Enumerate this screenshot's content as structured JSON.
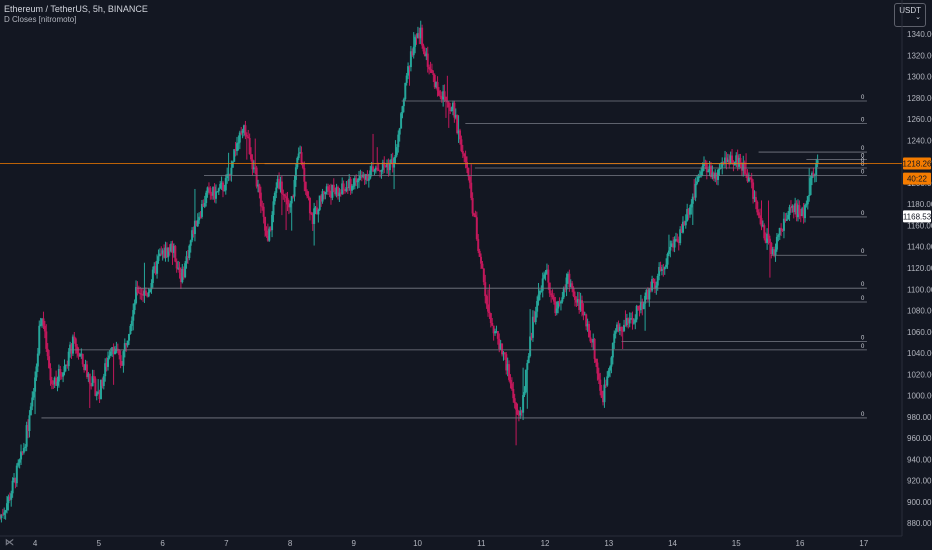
{
  "header": {
    "title": "Ethereum / TetherUS, 5h, BINANCE",
    "indicator": "D Closes [nitromoto]",
    "currency": "USDT",
    "currency_caret": "⌄"
  },
  "colors": {
    "background": "#131722",
    "up": "#26a69a",
    "down": "#c2185b",
    "level_line": "#787b86",
    "current_line": "#f57c00",
    "axis_text": "#b2b5be"
  },
  "chart_data": {
    "type": "candlestick",
    "y_axis": {
      "ylim": [
        868,
        1372
      ],
      "ticks": [
        880,
        900,
        920,
        940,
        960,
        980,
        1000,
        1020,
        1040,
        1060,
        1080,
        1100,
        1120,
        1140,
        1160,
        1180,
        1200,
        1220,
        1240,
        1260,
        1280,
        1300,
        1320,
        1340
      ],
      "tick_labels": [
        "880.00",
        "900.00",
        "920.00",
        "940.00",
        "960.00",
        "980.00",
        "1000.00",
        "1020.00",
        "1040.00",
        "1060.00",
        "1080.00",
        "1100.00",
        "1120.00",
        "1140.00",
        "1160.00",
        "1180.00",
        "1200.00",
        "1220.00",
        "1240.00",
        "1260.00",
        "1280.00",
        "1300.00",
        "1320.00",
        "1340.00"
      ]
    },
    "x_axis": {
      "xlim": [
        3.45,
        17.6
      ],
      "ticks": [
        4,
        5,
        6,
        7,
        8,
        9,
        10,
        11,
        12,
        13,
        14,
        15,
        16,
        17
      ],
      "tick_labels": [
        "4",
        "5",
        "6",
        "7",
        "8",
        "9",
        "10",
        "11",
        "12",
        "13",
        "14",
        "15",
        "16",
        "17"
      ]
    },
    "price_anchors": [
      [
        3.45,
        885
      ],
      [
        3.6,
        905
      ],
      [
        3.8,
        945
      ],
      [
        3.95,
        990
      ],
      [
        4.1,
        1080
      ],
      [
        4.25,
        1010
      ],
      [
        4.45,
        1025
      ],
      [
        4.6,
        1050
      ],
      [
        4.75,
        1030
      ],
      [
        5.0,
        1000
      ],
      [
        5.2,
        1050
      ],
      [
        5.35,
        1030
      ],
      [
        5.6,
        1100
      ],
      [
        5.75,
        1095
      ],
      [
        5.95,
        1130
      ],
      [
        6.15,
        1140
      ],
      [
        6.3,
        1110
      ],
      [
        6.5,
        1160
      ],
      [
        6.7,
        1190
      ],
      [
        6.85,
        1190
      ],
      [
        7.0,
        1200
      ],
      [
        7.15,
        1235
      ],
      [
        7.3,
        1250
      ],
      [
        7.5,
        1195
      ],
      [
        7.65,
        1140
      ],
      [
        7.8,
        1205
      ],
      [
        8.0,
        1175
      ],
      [
        8.15,
        1230
      ],
      [
        8.35,
        1165
      ],
      [
        8.55,
        1195
      ],
      [
        8.75,
        1190
      ],
      [
        9.0,
        1200
      ],
      [
        9.25,
        1210
      ],
      [
        9.45,
        1215
      ],
      [
        9.65,
        1220
      ],
      [
        9.75,
        1265
      ],
      [
        9.9,
        1325
      ],
      [
        10.05,
        1340
      ],
      [
        10.2,
        1305
      ],
      [
        10.35,
        1285
      ],
      [
        10.55,
        1270
      ],
      [
        10.75,
        1220
      ],
      [
        10.9,
        1165
      ],
      [
        11.05,
        1100
      ],
      [
        11.2,
        1060
      ],
      [
        11.35,
        1040
      ],
      [
        11.5,
        1000
      ],
      [
        11.6,
        975
      ],
      [
        11.8,
        1065
      ],
      [
        12.0,
        1120
      ],
      [
        12.15,
        1080
      ],
      [
        12.35,
        1110
      ],
      [
        12.55,
        1085
      ],
      [
        12.75,
        1050
      ],
      [
        12.9,
        995
      ],
      [
        13.1,
        1060
      ],
      [
        13.35,
        1070
      ],
      [
        13.55,
        1090
      ],
      [
        13.75,
        1110
      ],
      [
        13.9,
        1130
      ],
      [
        14.1,
        1150
      ],
      [
        14.3,
        1185
      ],
      [
        14.5,
        1215
      ],
      [
        14.7,
        1205
      ],
      [
        14.9,
        1225
      ],
      [
        15.05,
        1220
      ],
      [
        15.25,
        1195
      ],
      [
        15.45,
        1150
      ],
      [
        15.6,
        1135
      ],
      [
        15.75,
        1165
      ],
      [
        15.9,
        1175
      ],
      [
        16.05,
        1170
      ],
      [
        16.2,
        1210
      ],
      [
        16.28,
        1218.26
      ]
    ],
    "daily_close_levels": [
      {
        "value": 1277,
        "label": "0",
        "start_x": 9.75
      },
      {
        "value": 1256,
        "label": "0",
        "start_x": 10.75
      },
      {
        "value": 1229,
        "label": "0",
        "start_x": 15.35
      },
      {
        "value": 1222,
        "label": "0",
        "start_x": 16.1
      },
      {
        "value": 1218,
        "label": "0",
        "start_x": 7.6
      },
      {
        "value": 1214,
        "label": "0",
        "start_x": 10.9
      },
      {
        "value": 1207,
        "label": "0",
        "start_x": 6.65
      },
      {
        "value": 1168,
        "label": "0",
        "start_x": 16.15
      },
      {
        "value": 1132,
        "label": "0",
        "start_x": 15.55
      },
      {
        "value": 1101,
        "label": "0",
        "start_x": 5.6
      },
      {
        "value": 1088,
        "label": "0",
        "start_x": 12.55
      },
      {
        "value": 1051,
        "label": "0",
        "start_x": 13.2
      },
      {
        "value": 1043,
        "label": "0",
        "start_x": 4.55
      },
      {
        "value": 979,
        "label": "0",
        "start_x": 4.1
      }
    ],
    "price_labels": [
      {
        "value": 1218.26,
        "text": "1218.26",
        "style": "current"
      },
      {
        "value": 1204,
        "text": "40:22",
        "style": "timer"
      },
      {
        "value": 1168.53,
        "text": "1168.53",
        "style": "level"
      }
    ],
    "current_price": 1218.26
  }
}
